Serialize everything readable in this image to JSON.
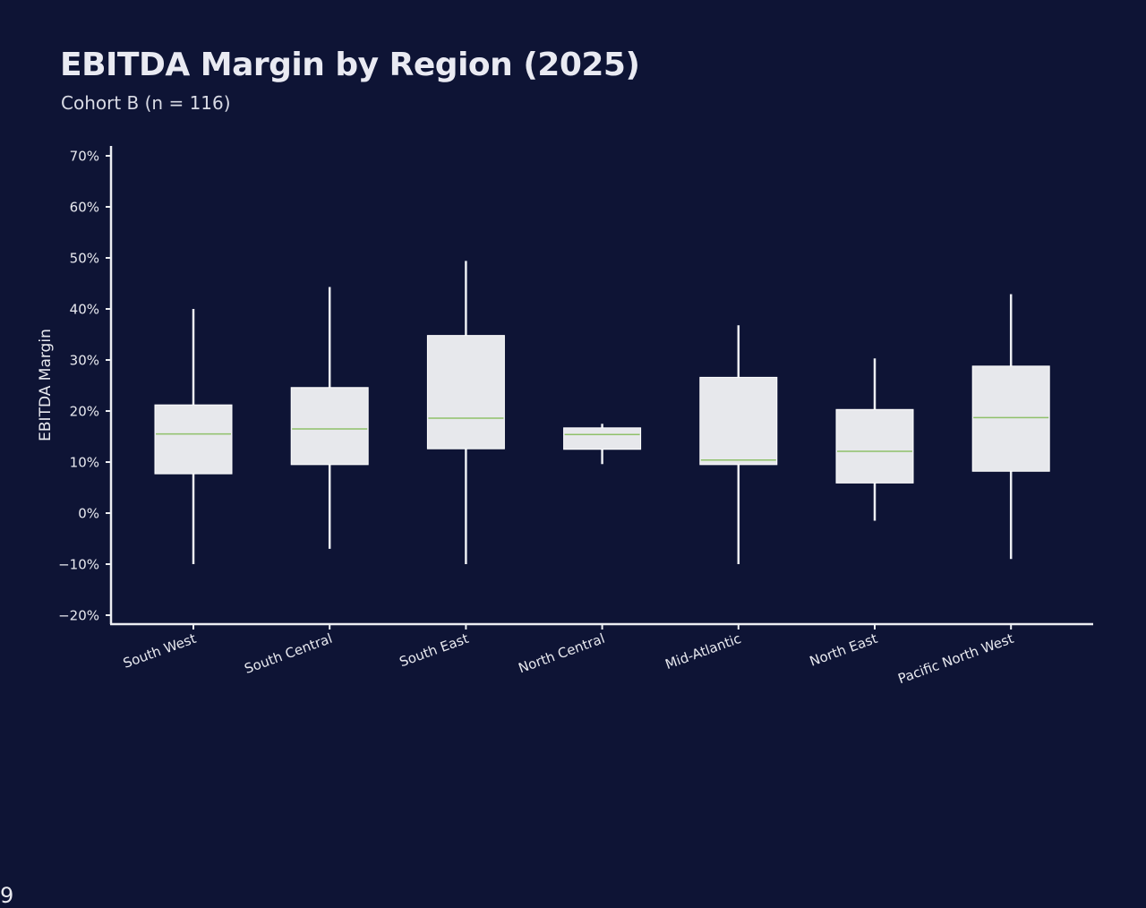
{
  "chart_data": {
    "type": "box",
    "title": "EBITDA Margin by Region (2025)",
    "subtitle": "Cohort B (n = 116)",
    "xlabel": "",
    "ylabel": "EBITDA Margin",
    "ylim": [
      -22,
      72
    ],
    "yticks": [
      -20,
      -10,
      0,
      10,
      20,
      30,
      40,
      50,
      60,
      70
    ],
    "ytick_labels": [
      "−20%",
      "−10%",
      "0%",
      "10%",
      "20%",
      "30%",
      "40%",
      "50%",
      "60%",
      "70%"
    ],
    "categories": [
      "South West",
      "South Central",
      "South East",
      "North Central",
      "Mid-Atlantic",
      "North East",
      "Pacific North West"
    ],
    "boxes": [
      {
        "min": -10,
        "q1": 7.7,
        "median": 15.5,
        "q3": 21.2,
        "max": 40
      },
      {
        "min": -7,
        "q1": 9.5,
        "median": 16.5,
        "q3": 24.6,
        "max": 44.3
      },
      {
        "min": -10,
        "q1": 12.6,
        "median": 18.6,
        "q3": 34.8,
        "max": 49.4
      },
      {
        "min": 9.6,
        "q1": 12.5,
        "median": 15.4,
        "q3": 16.7,
        "max": 17.5
      },
      {
        "min": -10,
        "q1": 9.5,
        "median": 10.4,
        "q3": 26.6,
        "max": 36.8
      },
      {
        "min": -1.5,
        "q1": 5.9,
        "median": 12.1,
        "q3": 20.3,
        "max": 30.3
      },
      {
        "min": -9,
        "q1": 8.2,
        "median": 18.7,
        "q3": 28.8,
        "max": 42.9
      }
    ],
    "grid": false,
    "legend": "none"
  },
  "colors": {
    "background": "#0e1435",
    "box_fill": "#e7e8ec",
    "median_line": "#8fc06a",
    "whisker": "#eceef2",
    "axis": "#eceef2",
    "text": "#e8e9ef"
  },
  "page_number": "9"
}
